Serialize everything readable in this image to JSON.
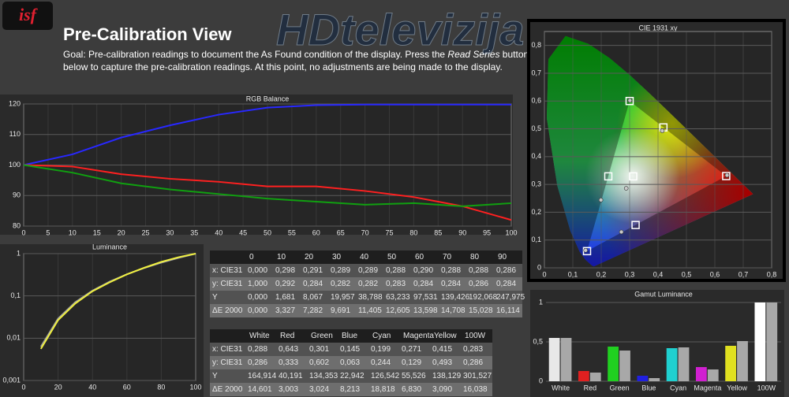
{
  "logo": "isf",
  "watermark": "HDtelevizija",
  "header": {
    "title": "Pre-Calibration View",
    "goal_line1_start": "Goal: Pre-calibration readings to document the As Found condition of the display. Press the",
    "goal_button": "Read Series",
    "goal_line1_end": "button",
    "goal_line2": "below to capture the pre-calibration readings. At this point, no adjustments are being made to the display."
  },
  "chart_data": [
    {
      "type": "line",
      "title": "RGB Balance",
      "x": [
        0,
        10,
        20,
        30,
        40,
        50,
        60,
        70,
        80,
        90,
        100
      ],
      "series": [
        {
          "color": "#2828ff",
          "values": [
            100,
            103.5,
            109,
            113,
            116.5,
            118.8,
            119.6,
            119.8,
            119.8,
            119.8,
            119.8
          ]
        },
        {
          "color": "#ff2020",
          "values": [
            100,
            99.5,
            97,
            95.5,
            94.5,
            93,
            93,
            91.5,
            89.5,
            86.5,
            82
          ]
        },
        {
          "color": "#10a010",
          "values": [
            100,
            97.5,
            94,
            92,
            90.5,
            89,
            88,
            87,
            87.5,
            86.5,
            87.5
          ]
        }
      ],
      "xlim": [
        0,
        100
      ],
      "xticks": [
        0,
        5,
        10,
        15,
        20,
        25,
        30,
        35,
        40,
        45,
        50,
        55,
        60,
        65,
        70,
        75,
        80,
        85,
        90,
        95,
        100
      ],
      "ylim": [
        80,
        120
      ],
      "yticks": [
        80,
        90,
        100,
        110,
        120
      ],
      "grid": true
    },
    {
      "type": "line",
      "title": "Luminance",
      "log_y": true,
      "x": [
        10,
        20,
        30,
        40,
        50,
        60,
        70,
        80,
        90,
        100
      ],
      "series": [
        {
          "color": "#a0a0a0",
          "values": [
            0.0063,
            0.029,
            0.071,
            0.133,
            0.218,
            0.325,
            0.456,
            0.612,
            0.793,
            1
          ]
        },
        {
          "color": "#f0f040",
          "values": [
            0.0056,
            0.0268,
            0.0662,
            0.129,
            0.21,
            0.323,
            0.462,
            0.637,
            0.822,
            1
          ]
        }
      ],
      "xlim": [
        0,
        100
      ],
      "xticks": [
        0,
        20,
        40,
        60,
        80,
        100
      ],
      "ylim": [
        0.001,
        1
      ],
      "yticks": [
        {
          "value": 0.001,
          "label": "0,001"
        },
        {
          "value": 0.01,
          "label": "0,01"
        },
        {
          "value": 0.1,
          "label": "0,1"
        },
        1
      ],
      "grid": true
    },
    {
      "type": "scatter",
      "title": "CIE 1931 xy",
      "series": [
        {
          "marker": "square",
          "color": "#ffffff",
          "x": [
            0.3127,
            0.64,
            0.3,
            0.15,
            0.225,
            0.321,
            0.419
          ],
          "values": [
            0.329,
            0.33,
            0.6,
            0.06,
            0.329,
            0.154,
            0.505
          ]
        },
        {
          "marker": "circle",
          "color": "#c8c8c8",
          "x": [
            0.288,
            0.643,
            0.301,
            0.145,
            0.199,
            0.271,
            0.415
          ],
          "values": [
            0.286,
            0.333,
            0.602,
            0.063,
            0.244,
            0.129,
            0.493
          ]
        }
      ],
      "xlim": [
        0,
        0.8
      ],
      "xticks": [
        0,
        {
          "value": 0.1,
          "label": "0,1"
        },
        {
          "value": 0.2,
          "label": "0,2"
        },
        {
          "value": 0.3,
          "label": "0,3"
        },
        {
          "value": 0.4,
          "label": "0,4"
        },
        {
          "value": 0.5,
          "label": "0,5"
        },
        {
          "value": 0.6,
          "label": "0,6"
        },
        {
          "value": 0.7,
          "label": "0,7"
        },
        {
          "value": 0.8,
          "label": "0,8"
        }
      ],
      "ylim": [
        0,
        0.85
      ],
      "yticks": [
        0,
        {
          "value": 0.1,
          "label": "0,1"
        },
        {
          "value": 0.2,
          "label": "0,2"
        },
        {
          "value": 0.3,
          "label": "0,3"
        },
        {
          "value": 0.4,
          "label": "0,4"
        },
        {
          "value": 0.5,
          "label": "0,5"
        },
        {
          "value": 0.6,
          "label": "0,6"
        },
        {
          "value": 0.7,
          "label": "0,7"
        },
        {
          "value": 0.8,
          "label": "0,8"
        }
      ],
      "grid": true
    },
    {
      "type": "bar",
      "title": "Gamut Luminance",
      "categories": [
        "White",
        "Red",
        "Green",
        "Blue",
        "Cyan",
        "Magenta",
        "Yellow",
        "100W"
      ],
      "series": [
        {
          "colors": [
            "#e8e8e8",
            "#e02020",
            "#20d020",
            "#2020e0",
            "#20d0d0",
            "#d020d0",
            "#e0e020",
            "#ffffff"
          ],
          "values": [
            0.55,
            0.13,
            0.44,
            0.07,
            0.42,
            0.18,
            0.45,
            1
          ]
        },
        {
          "color": "#a8a8a8",
          "values": [
            0.55,
            0.11,
            0.39,
            0.04,
            0.43,
            0.15,
            0.51,
            1
          ]
        }
      ],
      "ylim": [
        0,
        1
      ],
      "yticks": [
        0,
        {
          "value": 0.5,
          "label": "0,5"
        },
        1
      ],
      "grid": true
    }
  ],
  "tables": [
    {
      "columns": [
        "0",
        "10",
        "20",
        "30",
        "40",
        "50",
        "60",
        "70",
        "80",
        "90"
      ],
      "rows": [
        {
          "label": "x: CIE31",
          "cells": [
            "0,000",
            "0,298",
            "0,291",
            "0,289",
            "0,289",
            "0,288",
            "0,290",
            "0,288",
            "0,288",
            "0,286"
          ]
        },
        {
          "label": "y: CIE31",
          "cells": [
            "1,000",
            "0,292",
            "0,284",
            "0,282",
            "0,282",
            "0,283",
            "0,284",
            "0,284",
            "0,286",
            "0,284"
          ]
        },
        {
          "label": "Y",
          "cells": [
            "0,000",
            "1,681",
            "8,067",
            "19,957",
            "38,788",
            "63,233",
            "97,531",
            "139,426",
            "192,068",
            "247,975"
          ]
        },
        {
          "label": "ΔE 2000",
          "cells": [
            "0,000",
            "3,327",
            "7,282",
            "9,691",
            "11,405",
            "12,605",
            "13,598",
            "14,708",
            "15,028",
            "16,114"
          ]
        }
      ]
    },
    {
      "columns": [
        "White",
        "Red",
        "Green",
        "Blue",
        "Cyan",
        "Magenta",
        "Yellow",
        "100W"
      ],
      "rows": [
        {
          "label": "x: CIE31",
          "cells": [
            "0,288",
            "0,643",
            "0,301",
            "0,145",
            "0,199",
            "0,271",
            "0,415",
            "0,283"
          ]
        },
        {
          "label": "y: CIE31",
          "cells": [
            "0,286",
            "0,333",
            "0,602",
            "0,063",
            "0,244",
            "0,129",
            "0,493",
            "0,286"
          ]
        },
        {
          "label": "Y",
          "cells": [
            "164,914",
            "40,191",
            "134,353",
            "22,942",
            "126,542",
            "55,526",
            "138,129",
            "301,527"
          ]
        },
        {
          "label": "ΔE 2000",
          "cells": [
            "14,601",
            "3,003",
            "3,024",
            "8,213",
            "18,818",
            "6,830",
            "3,090",
            "16,038"
          ]
        }
      ]
    }
  ]
}
